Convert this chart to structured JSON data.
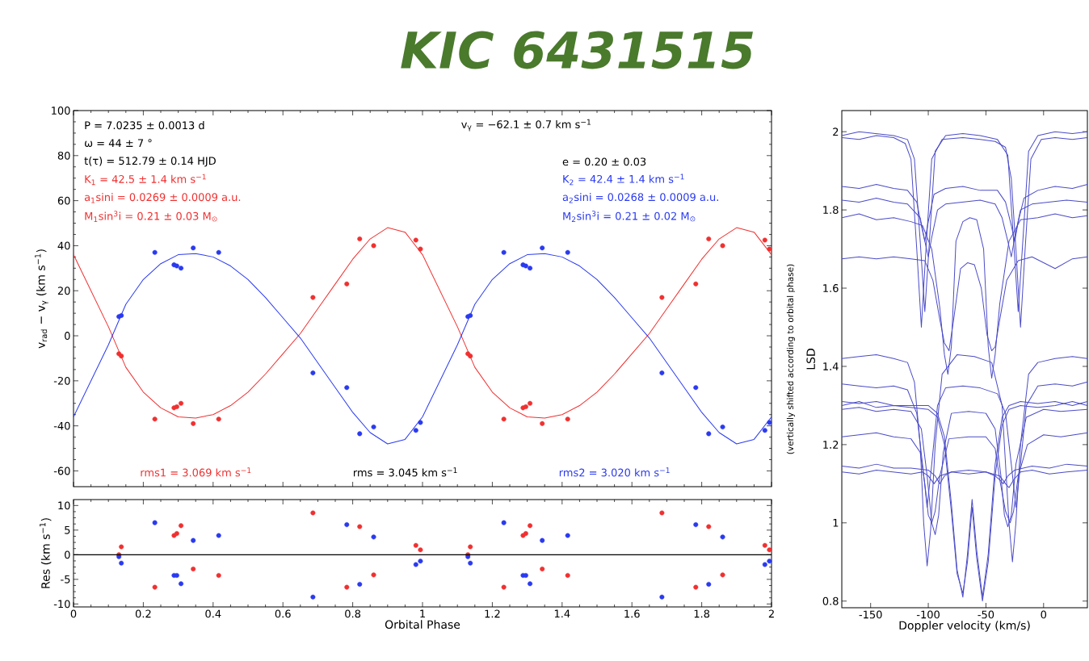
{
  "chart_data": [
    {
      "type": "scatter",
      "title": "KIC 6431515",
      "ylabel": "v$_{rad}$ − v$_{γ}$ (km s$^{−1}$)",
      "xlim": [
        0,
        2
      ],
      "ylim": [
        -67,
        100
      ],
      "xticks": [
        0,
        0.2,
        0.4,
        0.6,
        0.8,
        1,
        1.2,
        1.4,
        1.6,
        1.8,
        2
      ],
      "yticks": [
        -60,
        -40,
        -20,
        0,
        20,
        40,
        60,
        80,
        100
      ],
      "tick_labels": "y",
      "annotations": [
        "P   =      7.0235 ±   0.0013 d",
        "v$_{γ}$   =   −62.1 ±    0.7 km s$^{−1}$",
        "ω   =            44 ±          7 °",
        "t(τ) =     512.79 ±    0.14 HJD",
        "e  =    0.20 ±    0.03",
        "K$_{1}$      =     42.5 ±      1.4 km s$^{−1}$",
        "a$_{1}$sini  =  0.0269 ±  0.0009 a.u.",
        "M$_{1}$sin$^{3}$i =     0.21 ±      0.03 M$_{⊙}$",
        "K$_{2}$      =     42.4 ±      1.4 km s$^{−1}$",
        "a$_{2}$sini  =  0.0268 ±  0.0009 a.u.",
        "M$_{2}$sin$^{3}$i =     0.21 ±      0.02 M$_{⊙}$",
        "rms1 =    3.069 km s$^{−1}$",
        "rms =    3.045 km s$^{−1}$",
        "rms2 =    3.020 km s$^{−1}$"
      ],
      "series": [
        {
          "type": "scatter",
          "marker": "circle",
          "color": "#f03030",
          "x": [
            0.13,
            0.137,
            0.233,
            0.288,
            0.296,
            0.308,
            0.343,
            0.416,
            0.686,
            0.783,
            0.82,
            0.86,
            0.981,
            0.994,
            1.13,
            1.137,
            1.233,
            1.288,
            1.296,
            1.308,
            1.343,
            1.416,
            1.686,
            1.783,
            1.82,
            1.86,
            1.981,
            1.994
          ],
          "values": [
            -8,
            -9,
            -37,
            -32,
            -31.5,
            -30,
            -39,
            -37,
            17,
            23,
            43,
            40,
            42.5,
            38.5,
            -8,
            -9,
            -37,
            -32,
            -31.5,
            -30,
            -39,
            -37,
            17,
            23,
            43,
            40,
            42.5,
            38.5
          ]
        },
        {
          "type": "scatter",
          "marker": "circle",
          "color": "#2a3af0",
          "x": [
            0.13,
            0.137,
            0.233,
            0.288,
            0.296,
            0.308,
            0.343,
            0.416,
            0.686,
            0.783,
            0.82,
            0.86,
            0.981,
            0.994,
            1.13,
            1.137,
            1.233,
            1.288,
            1.296,
            1.308,
            1.343,
            1.416,
            1.686,
            1.783,
            1.82,
            1.86,
            1.981,
            1.994
          ],
          "values": [
            8.5,
            9,
            37,
            31.5,
            31,
            30,
            39,
            37,
            -16.5,
            -23,
            -43.5,
            -40.5,
            -42,
            -38.5,
            8.5,
            9,
            37,
            31.5,
            31,
            30,
            39,
            37,
            -16.5,
            -23,
            -43.5,
            -40.5,
            -42,
            -38.5
          ]
        },
        {
          "type": "line",
          "color": "#f03030",
          "x": [
            0,
            0.05,
            0.1,
            0.15,
            0.2,
            0.25,
            0.3,
            0.35,
            0.4,
            0.45,
            0.5,
            0.55,
            0.6,
            0.65,
            0.7,
            0.75,
            0.8,
            0.85,
            0.9,
            0.95,
            1,
            1.05,
            1.1,
            1.15,
            1.2,
            1.25,
            1.3,
            1.35,
            1.4,
            1.45,
            1.5,
            1.55,
            1.6,
            1.65,
            1.7,
            1.75,
            1.8,
            1.85,
            1.9,
            1.95,
            2
          ],
          "values": [
            36,
            20,
            4,
            -14,
            -25,
            -32,
            -36,
            -36.5,
            -35,
            -31,
            -25,
            -17,
            -8,
            1,
            12,
            23,
            34,
            43,
            48,
            46,
            36,
            20,
            4,
            -14,
            -25,
            -32,
            -36,
            -36.5,
            -35,
            -31,
            -25,
            -17,
            -8,
            1,
            12,
            23,
            34,
            43,
            48,
            46,
            36
          ]
        },
        {
          "type": "line",
          "color": "#2a3af0",
          "x": [
            0,
            0.05,
            0.1,
            0.15,
            0.2,
            0.25,
            0.3,
            0.35,
            0.4,
            0.45,
            0.5,
            0.55,
            0.6,
            0.65,
            0.7,
            0.75,
            0.8,
            0.85,
            0.9,
            0.95,
            1,
            1.05,
            1.1,
            1.15,
            1.2,
            1.25,
            1.3,
            1.35,
            1.4,
            1.45,
            1.5,
            1.55,
            1.6,
            1.65,
            1.7,
            1.75,
            1.8,
            1.85,
            1.9,
            1.95,
            2
          ],
          "values": [
            -36,
            -20,
            -4,
            14,
            25,
            32,
            36,
            36.5,
            35,
            31,
            25,
            17,
            8,
            -1,
            -12,
            -23,
            -34,
            -43,
            -48,
            -46,
            -36,
            -20,
            -4,
            14,
            25,
            32,
            36,
            36.5,
            35,
            31,
            25,
            17,
            8,
            -1,
            -12,
            -23,
            -34,
            -43,
            -48,
            -46,
            -36
          ]
        }
      ]
    },
    {
      "type": "scatter",
      "xlabel": "Orbital Phase",
      "ylabel": "Res (km s$^{−1}$)",
      "xlim": [
        0,
        2
      ],
      "ylim": [
        -10.6,
        11.2
      ],
      "xticks": [
        0,
        0.2,
        0.4,
        0.6,
        0.8,
        1,
        1.2,
        1.4,
        1.6,
        1.8,
        2
      ],
      "yticks": [
        -10,
        -5,
        0,
        5,
        10
      ],
      "marker": "circle",
      "ref_lines": [
        {
          "axis": "y",
          "value": 0,
          "color": "#000000"
        }
      ],
      "series": [
        {
          "type": "scatter",
          "color": "#f03030",
          "x": [
            0.13,
            0.137,
            0.233,
            0.288,
            0.296,
            0.308,
            0.343,
            0.416,
            0.686,
            0.783,
            0.82,
            0.86,
            0.981,
            0.994,
            1.13,
            1.137,
            1.233,
            1.288,
            1.296,
            1.308,
            1.343,
            1.416,
            1.686,
            1.783,
            1.82,
            1.86,
            1.981,
            1.994
          ],
          "values": [
            0,
            1.6,
            -6.6,
            3.9,
            4.3,
            5.9,
            -2.9,
            -4.2,
            8.5,
            -6.6,
            5.7,
            -4.1,
            1.9,
            1.0,
            0,
            1.6,
            -6.6,
            3.9,
            4.3,
            5.9,
            -2.9,
            -4.2,
            8.5,
            -6.6,
            5.7,
            -4.1,
            1.9,
            1.0
          ]
        },
        {
          "type": "scatter",
          "color": "#2a3af0",
          "x": [
            0.13,
            0.137,
            0.233,
            0.288,
            0.296,
            0.308,
            0.343,
            0.416,
            0.686,
            0.783,
            0.82,
            0.86,
            0.981,
            0.994,
            1.13,
            1.137,
            1.233,
            1.288,
            1.296,
            1.308,
            1.343,
            1.416,
            1.686,
            1.783,
            1.82,
            1.86,
            1.981,
            1.994
          ],
          "values": [
            -0.4,
            -1.7,
            6.5,
            -4.2,
            -4.2,
            -5.9,
            2.9,
            3.9,
            -8.6,
            6.1,
            -6.0,
            3.6,
            -2.0,
            -1.3,
            -0.4,
            -1.7,
            6.5,
            -4.2,
            -4.2,
            -5.9,
            2.9,
            3.9,
            -8.6,
            6.1,
            -6.0,
            3.6,
            -2.0,
            -1.3
          ]
        }
      ]
    },
    {
      "type": "line",
      "xlabel": "Doppler velocity (km/s)",
      "ylabel": "LSD",
      "xlim": [
        -175,
        38
      ],
      "ylim": [
        0.783,
        2.054
      ],
      "xticks": [
        -150,
        -100,
        -50,
        0
      ],
      "yticks": [
        0.8,
        1,
        1.2,
        1.4,
        1.6,
        1.8,
        2
      ],
      "annotations": [
        "(vertically shifted according to orbital phase)"
      ],
      "series": [
        {
          "color": "#4b4bc8",
          "x": [
            -175,
            -160,
            -145,
            -130,
            -118,
            -112,
            -107,
            -103,
            -99,
            -94,
            -85,
            -70,
            -55,
            -40,
            -31,
            -26,
            -22,
            -18,
            -13,
            -5,
            10,
            25,
            38
          ],
          "values": [
            1.99,
            2.0,
            1.995,
            1.99,
            1.98,
            1.93,
            1.72,
            1.54,
            1.72,
            1.95,
            1.99,
            1.995,
            1.99,
            1.98,
            1.94,
            1.72,
            1.54,
            1.72,
            1.95,
            1.99,
            2.0,
            1.995,
            2.0
          ]
        },
        {
          "color": "#4b4bc8",
          "x": [
            -175,
            -160,
            -145,
            -130,
            -120,
            -115,
            -110,
            -106,
            -102,
            -97,
            -88,
            -70,
            -55,
            -42,
            -33,
            -28,
            -24,
            -20,
            -16,
            -11,
            -2,
            10,
            25,
            38
          ],
          "values": [
            1.985,
            1.98,
            1.99,
            1.985,
            1.97,
            1.93,
            1.7,
            1.5,
            1.7,
            1.93,
            1.98,
            1.985,
            1.98,
            1.975,
            1.96,
            1.88,
            1.7,
            1.5,
            1.7,
            1.93,
            1.98,
            1.985,
            1.98,
            1.985
          ]
        },
        {
          "color": "#4b4bc8",
          "x": [
            -175,
            -160,
            -145,
            -130,
            -118,
            -110,
            -106,
            -103,
            -100,
            -95,
            -85,
            -70,
            -55,
            -40,
            -33,
            -28,
            -25,
            -22,
            -17,
            -5,
            10,
            25,
            38
          ],
          "values": [
            1.86,
            1.855,
            1.865,
            1.855,
            1.85,
            1.82,
            1.76,
            1.72,
            1.77,
            1.84,
            1.855,
            1.86,
            1.85,
            1.85,
            1.82,
            1.76,
            1.72,
            1.77,
            1.83,
            1.85,
            1.86,
            1.855,
            1.865
          ]
        },
        {
          "color": "#4b4bc8",
          "x": [
            -175,
            -160,
            -145,
            -130,
            -118,
            -107,
            -103,
            -100,
            -97,
            -92,
            -85,
            -70,
            -55,
            -42,
            -36,
            -31,
            -28,
            -25,
            -20,
            -10,
            5,
            20,
            38
          ],
          "values": [
            1.825,
            1.82,
            1.83,
            1.82,
            1.815,
            1.78,
            1.72,
            1.68,
            1.73,
            1.8,
            1.815,
            1.82,
            1.825,
            1.815,
            1.78,
            1.72,
            1.68,
            1.73,
            1.8,
            1.815,
            1.82,
            1.825,
            1.82
          ]
        },
        {
          "color": "#4b4bc8",
          "x": [
            -175,
            -160,
            -145,
            -130,
            -115,
            -105,
            -97,
            -90,
            -86,
            -83,
            -80,
            -76,
            -70,
            -64,
            -58,
            -52,
            -48,
            -45,
            -42,
            -38,
            -30,
            -20,
            -5,
            10,
            25,
            38
          ],
          "values": [
            1.78,
            1.79,
            1.775,
            1.78,
            1.77,
            1.76,
            1.7,
            1.55,
            1.43,
            1.38,
            1.45,
            1.72,
            1.77,
            1.78,
            1.775,
            1.7,
            1.45,
            1.37,
            1.43,
            1.56,
            1.72,
            1.775,
            1.78,
            1.79,
            1.78,
            1.785
          ]
        },
        {
          "color": "#4b4bc8",
          "x": [
            -175,
            -160,
            -145,
            -130,
            -115,
            -103,
            -96,
            -90,
            -86,
            -82,
            -78,
            -72,
            -66,
            -60,
            -54,
            -49,
            -45,
            -42,
            -38,
            -32,
            -22,
            -10,
            10,
            25,
            38
          ],
          "values": [
            1.675,
            1.68,
            1.675,
            1.68,
            1.675,
            1.67,
            1.62,
            1.52,
            1.46,
            1.44,
            1.52,
            1.65,
            1.665,
            1.66,
            1.6,
            1.48,
            1.44,
            1.45,
            1.52,
            1.62,
            1.67,
            1.68,
            1.65,
            1.675,
            1.68
          ]
        },
        {
          "color": "#4b4bc8",
          "x": [
            -175,
            -160,
            -145,
            -130,
            -118,
            -112,
            -107,
            -104,
            -101,
            -98,
            -94,
            -88,
            -75,
            -60,
            -45,
            -36,
            -32,
            -30,
            -27,
            -24,
            -20,
            -13,
            -5,
            10,
            25,
            38
          ],
          "values": [
            1.42,
            1.425,
            1.43,
            1.42,
            1.41,
            1.36,
            1.2,
            1.0,
            0.89,
            0.98,
            1.2,
            1.38,
            1.43,
            1.425,
            1.41,
            1.3,
            1.1,
            1.0,
            0.9,
            1.0,
            1.2,
            1.38,
            1.41,
            1.42,
            1.425,
            1.42
          ]
        },
        {
          "color": "#4b4bc8",
          "x": [
            -175,
            -160,
            -145,
            -130,
            -118,
            -110,
            -105,
            -101,
            -97,
            -92,
            -85,
            -70,
            -55,
            -40,
            -33,
            -28,
            -24,
            -20,
            -15,
            -5,
            10,
            25,
            38
          ],
          "values": [
            1.355,
            1.35,
            1.345,
            1.35,
            1.34,
            1.28,
            1.15,
            1.04,
            1.15,
            1.3,
            1.345,
            1.35,
            1.345,
            1.33,
            1.28,
            1.15,
            1.04,
            1.15,
            1.3,
            1.35,
            1.355,
            1.35,
            1.36
          ]
        },
        {
          "color": "#4b4bc8",
          "x": [
            -175,
            -160,
            -145,
            -130,
            -115,
            -100,
            -92,
            -86,
            -80,
            -75,
            -70,
            -66,
            -62,
            -58,
            -53,
            -48,
            -42,
            -36,
            -30,
            -20,
            -5,
            10,
            25,
            38
          ],
          "values": [
            1.31,
            1.305,
            1.31,
            1.3,
            1.3,
            1.3,
            1.28,
            1.22,
            1.05,
            0.88,
            0.81,
            0.92,
            1.06,
            0.93,
            0.81,
            0.92,
            1.15,
            1.27,
            1.3,
            1.31,
            1.305,
            1.31,
            1.3,
            1.31
          ]
        },
        {
          "color": "#4b4bc8",
          "x": [
            -175,
            -160,
            -145,
            -130,
            -115,
            -100,
            -92,
            -86,
            -80,
            -75,
            -70,
            -66,
            -62,
            -58,
            -53,
            -48,
            -42,
            -36,
            -30,
            -20,
            -5,
            10,
            25,
            38
          ],
          "values": [
            1.3,
            1.31,
            1.295,
            1.3,
            1.295,
            1.29,
            1.27,
            1.2,
            1.03,
            0.87,
            0.82,
            0.9,
            1.04,
            0.91,
            0.8,
            0.9,
            1.12,
            1.25,
            1.29,
            1.3,
            1.295,
            1.3,
            1.31,
            1.3
          ]
        },
        {
          "color": "#4b4bc8",
          "x": [
            -175,
            -160,
            -145,
            -130,
            -115,
            -106,
            -101,
            -97,
            -94,
            -91,
            -87,
            -80,
            -65,
            -50,
            -42,
            -37,
            -34,
            -31,
            -28,
            -24,
            -15,
            0,
            15,
            38
          ],
          "values": [
            1.29,
            1.295,
            1.285,
            1.29,
            1.285,
            1.24,
            1.12,
            1.0,
            0.97,
            1.02,
            1.18,
            1.28,
            1.285,
            1.28,
            1.24,
            1.12,
            1.02,
            0.99,
            1.02,
            1.15,
            1.27,
            1.29,
            1.285,
            1.29
          ]
        },
        {
          "color": "#4b4bc8",
          "x": [
            -175,
            -160,
            -145,
            -130,
            -115,
            -107,
            -103,
            -100,
            -97,
            -94,
            -90,
            -82,
            -65,
            -50,
            -42,
            -38,
            -33,
            -29,
            -26,
            -22,
            -14,
            0,
            15,
            38
          ],
          "values": [
            1.22,
            1.225,
            1.23,
            1.22,
            1.215,
            1.18,
            1.1,
            1.02,
            1.0,
            1.03,
            1.12,
            1.215,
            1.22,
            1.22,
            1.19,
            1.11,
            1.03,
            1.0,
            1.03,
            1.12,
            1.2,
            1.225,
            1.22,
            1.23
          ]
        },
        {
          "color": "#4b4bc8",
          "x": [
            -175,
            -160,
            -145,
            -130,
            -115,
            -100,
            -94,
            -90,
            -86,
            -80,
            -65,
            -50,
            -42,
            -38,
            -35,
            -31,
            -25,
            -10,
            5,
            20,
            38
          ],
          "values": [
            1.145,
            1.14,
            1.15,
            1.14,
            1.14,
            1.135,
            1.12,
            1.1,
            1.12,
            1.13,
            1.135,
            1.13,
            1.12,
            1.11,
            1.1,
            1.12,
            1.135,
            1.145,
            1.14,
            1.15,
            1.145
          ]
        },
        {
          "color": "#4b4bc8",
          "x": [
            -175,
            -160,
            -145,
            -130,
            -115,
            -105,
            -100,
            -95,
            -90,
            -80,
            -65,
            -50,
            -38,
            -33,
            -30,
            -26,
            -20,
            -10,
            5,
            20,
            38
          ],
          "values": [
            1.13,
            1.125,
            1.135,
            1.13,
            1.125,
            1.13,
            1.12,
            1.1,
            1.12,
            1.13,
            1.125,
            1.13,
            1.12,
            1.1,
            1.09,
            1.11,
            1.13,
            1.135,
            1.125,
            1.13,
            1.135
          ]
        }
      ]
    }
  ]
}
